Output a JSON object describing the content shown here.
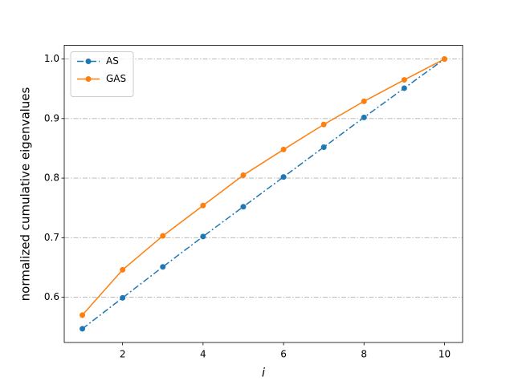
{
  "chart_data": {
    "type": "line",
    "x": [
      1,
      2,
      3,
      4,
      5,
      6,
      7,
      8,
      9,
      10
    ],
    "series": [
      {
        "name": "AS",
        "color": "#1f77b4",
        "linestyle": "dashdot",
        "values": [
          0.547,
          0.599,
          0.651,
          0.702,
          0.752,
          0.802,
          0.852,
          0.902,
          0.951,
          1.0
        ]
      },
      {
        "name": "GAS",
        "color": "#ff7f0e",
        "linestyle": "solid",
        "values": [
          0.57,
          0.646,
          0.703,
          0.754,
          0.805,
          0.848,
          0.89,
          0.929,
          0.965,
          1.0
        ]
      }
    ],
    "xlabel": "i",
    "ylabel": "normalized cumulative eigenvalues",
    "xlim": [
      0.55,
      10.45
    ],
    "xticks": [
      2,
      4,
      6,
      8,
      10
    ],
    "ylim": [
      0.524,
      1.023
    ],
    "yticks": [
      0.6,
      0.7,
      0.8,
      0.9,
      {
        "value": 1.0,
        "label": "1.0"
      }
    ],
    "grid": "y",
    "legend": "upper left"
  }
}
